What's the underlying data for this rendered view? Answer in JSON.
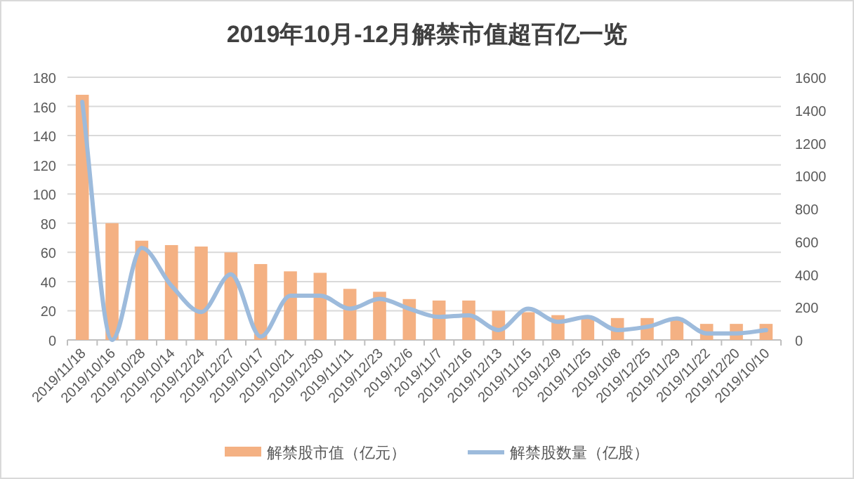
{
  "chart_data": {
    "type": "bar",
    "title": "2019年10月-12月解禁市值超百亿一览",
    "categories": [
      "2019/11/18",
      "2019/10/16",
      "2019/10/28",
      "2019/10/14",
      "2019/12/24",
      "2019/12/27",
      "2019/10/17",
      "2019/10/21",
      "2019/12/30",
      "2019/11/11",
      "2019/12/23",
      "2019/12/6",
      "2019/11/7",
      "2019/12/16",
      "2019/12/13",
      "2019/11/15",
      "2019/12/9",
      "2019/11/25",
      "2019/10/8",
      "2019/12/25",
      "2019/11/29",
      "2019/11/22",
      "2019/12/20",
      "2019/10/10"
    ],
    "series": [
      {
        "name": "解禁股市值（亿元）",
        "color": "#f4b183",
        "values": [
          168,
          80,
          68,
          65,
          64,
          60,
          52,
          47,
          46,
          35,
          33,
          28,
          27,
          27,
          20,
          19,
          17,
          16,
          15,
          15,
          15,
          11,
          11,
          11
        ]
      },
      {
        "name": "解禁股数量（亿股）",
        "type": "line",
        "axis": "y2",
        "color": "#9dbbdc",
        "values": [
          1450,
          0,
          560,
          330,
          170,
          400,
          20,
          270,
          270,
          190,
          250,
          190,
          140,
          150,
          60,
          190,
          110,
          140,
          60,
          80,
          130,
          40,
          40,
          60
        ]
      }
    ],
    "ylim": [
      0,
      180
    ],
    "yticks": [
      0,
      20,
      40,
      60,
      80,
      100,
      120,
      140,
      160,
      180
    ],
    "y2lim": [
      0,
      1600
    ],
    "y2ticks": [
      0,
      200,
      400,
      600,
      800,
      1000,
      1200,
      1400,
      1600
    ],
    "grid": "y",
    "legend": "bottom"
  }
}
